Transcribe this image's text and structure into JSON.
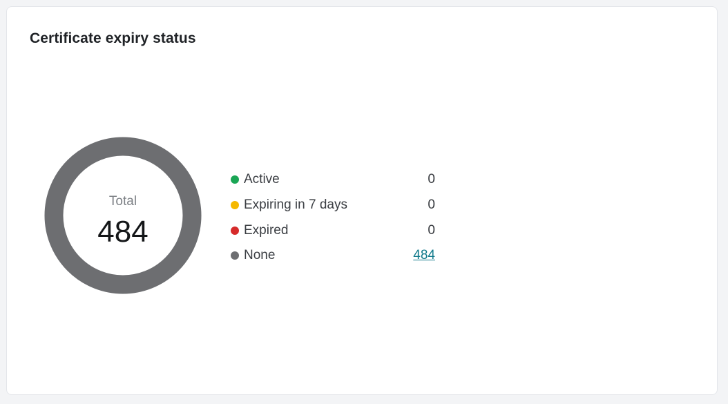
{
  "card": {
    "title": "Certificate expiry status"
  },
  "donut": {
    "total_label": "Total",
    "total_value": "484"
  },
  "chart_data": {
    "type": "pie",
    "categories": [
      "Active",
      "Expiring in 7 days",
      "Expired",
      "None"
    ],
    "values": [
      0,
      0,
      0,
      484
    ],
    "colors": [
      "#1aa655",
      "#f5b800",
      "#d62b2b",
      "#6d6e71"
    ]
  },
  "legend": {
    "items": [
      {
        "label": "Active",
        "value": "0",
        "color": "#1aa655",
        "link": false
      },
      {
        "label": "Expiring in 7 days",
        "value": "0",
        "color": "#f5b800",
        "link": false
      },
      {
        "label": "Expired",
        "value": "0",
        "color": "#d62b2b",
        "link": false
      },
      {
        "label": "None",
        "value": "484",
        "color": "#6d6e71",
        "link": true
      }
    ]
  }
}
